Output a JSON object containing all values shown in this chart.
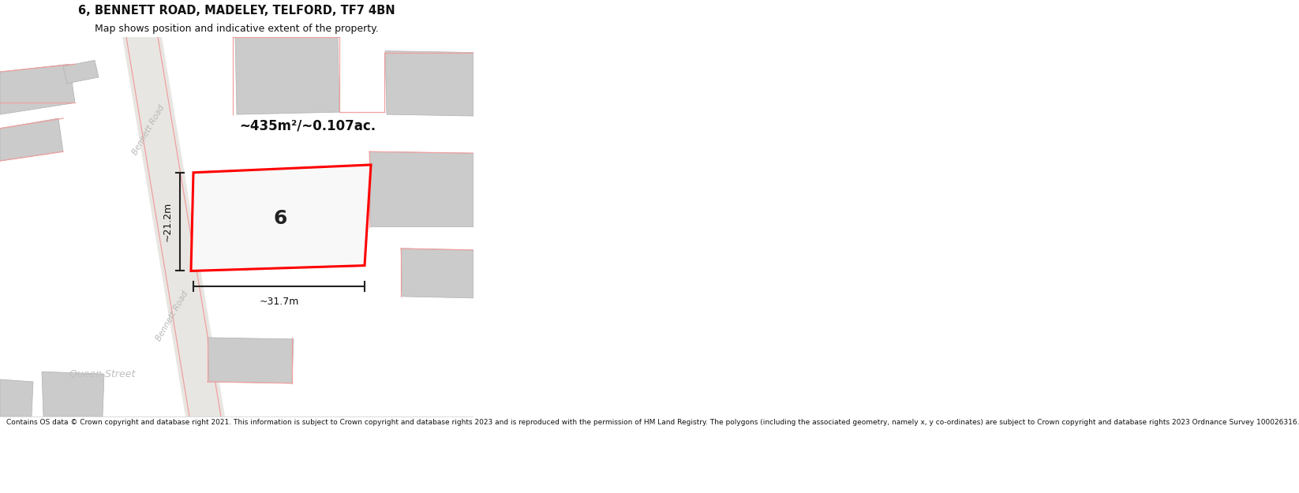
{
  "title": "6, BENNETT ROAD, MADELEY, TELFORD, TF7 4BN",
  "subtitle": "Map shows position and indicative extent of the property.",
  "footer": "Contains OS data © Crown copyright and database right 2021. This information is subject to Crown copyright and database rights 2023 and is reproduced with the permission of HM Land Registry. The polygons (including the associated geometry, namely x, y co-ordinates) are subject to Crown copyright and database rights 2023 Ordnance Survey 100026316.",
  "bg_color": "#ffffff",
  "map_bg": "#f5f3f0",
  "area_label": "~435m²/~0.107ac.",
  "number_label": "6",
  "dim_width": "~31.7m",
  "dim_height": "~21.2m",
  "road_label_upper": "Bennett Road",
  "road_label_lower": "Bennett Road",
  "street_label": "Queen Street",
  "red_color": "#ff0000",
  "pink_color": "#f0a0a0",
  "dark_color": "#333333",
  "road_band_color": "#e8e6e2",
  "building_color": "#cbcbcb",
  "building_edge": "#b0b0b0",
  "title_fontsize": 10.5,
  "subtitle_fontsize": 9,
  "footer_fontsize": 6.5
}
